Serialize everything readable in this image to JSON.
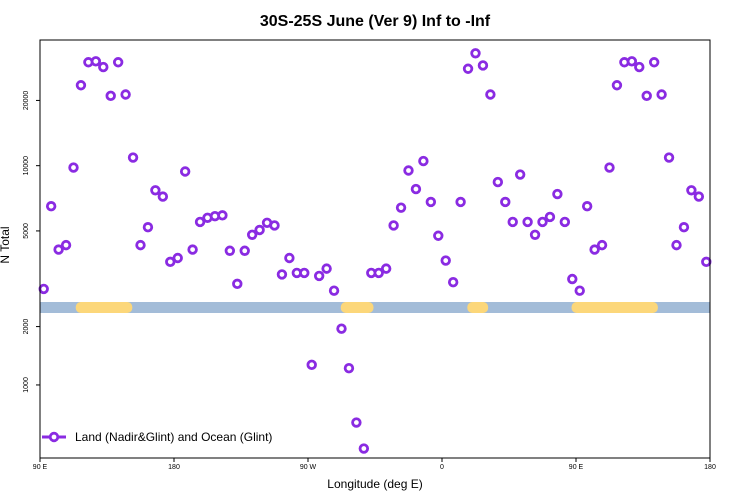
{
  "chart_data": {
    "type": "scatter",
    "title": "30S-25S June (Ver 9)   Inf to -Inf",
    "xlabel": "Longitude (deg E)",
    "ylabel": "N Total",
    "x_ticks": [
      {
        "value": 90,
        "label": "90 E"
      },
      {
        "value": 180,
        "label": "180"
      },
      {
        "value": 270,
        "label": "90 W"
      },
      {
        "value": 360,
        "label": "0"
      },
      {
        "value": 450,
        "label": "90 E"
      },
      {
        "value": 540,
        "label": "180"
      }
    ],
    "xlim": [
      90,
      540
    ],
    "upper_panel": {
      "scale": "log",
      "ylim": [
        2350,
        38000
      ],
      "y_ticks": [
        {
          "value": 5000,
          "label": "5000"
        },
        {
          "value": 10000,
          "label": "10000"
        },
        {
          "value": 20000,
          "label": "20000"
        }
      ]
    },
    "lower_panel": {
      "scale": "log",
      "ylim": [
        420,
        2350
      ],
      "y_ticks": [
        {
          "value": 1000,
          "label": "1000"
        },
        {
          "value": 2000,
          "label": "2000"
        }
      ]
    },
    "surface_bar": {
      "base_color": "#a3bcd8",
      "land_color": "#fcd77a",
      "land_segments": [
        [
          114,
          152
        ],
        [
          292,
          314
        ],
        [
          377,
          391
        ],
        [
          447,
          505
        ]
      ]
    },
    "series": [
      {
        "name": "Land (Nadir&Glint) and Ocean (Glint)",
        "color": "#8a2be2",
        "x": [
          92.5,
          97.5,
          102.5,
          107.5,
          112.5,
          117.5,
          122.5,
          127.5,
          132.5,
          137.5,
          142.5,
          147.5,
          152.5,
          157.5,
          162.5,
          167.5,
          172.5,
          177.5,
          182.5,
          187.5,
          192.5,
          197.5,
          202.5,
          207.5,
          212.5,
          217.5,
          222.5,
          227.5,
          232.5,
          237.5,
          242.5,
          247.5,
          252.5,
          257.5,
          262.5,
          267.5,
          272.5,
          277.5,
          282.5,
          287.5,
          292.5,
          297.5,
          302.5,
          307.5,
          312.5,
          317.5,
          322.5,
          327.5,
          332.5,
          337.5,
          342.5,
          347.5,
          352.5,
          357.5,
          362.5,
          367.5,
          372.5,
          377.5,
          382.5,
          387.5,
          392.5,
          397.5,
          402.5,
          407.5,
          412.5,
          417.5,
          422.5,
          427.5,
          432.5,
          437.5,
          442.5,
          447.5,
          452.5,
          457.5,
          462.5,
          467.5,
          472.5,
          477.5,
          482.5,
          487.5,
          492.5,
          497.5,
          502.5,
          507.5,
          512.5,
          517.5,
          522.5,
          527.5,
          532.5,
          537.5
        ],
        "y": [
          2700,
          6500,
          4100,
          4300,
          9800,
          23500,
          30000,
          30300,
          28500,
          21000,
          30000,
          21300,
          10900,
          4300,
          5200,
          7700,
          7200,
          3600,
          3750,
          9400,
          4100,
          5500,
          5750,
          5850,
          5900,
          4050,
          2850,
          4050,
          4800,
          5050,
          5450,
          5300,
          3150,
          3750,
          3200,
          3200,
          1270,
          3100,
          3350,
          2650,
          1950,
          1220,
          640,
          470,
          3200,
          3200,
          3350,
          5300,
          6400,
          9500,
          7800,
          10500,
          6800,
          4750,
          3650,
          2900,
          6800,
          28000,
          33000,
          29000,
          21300,
          8400,
          6800,
          5500,
          9100,
          5500,
          4800,
          5500,
          5800,
          7400,
          5500,
          3000,
          2650,
          6500,
          4100,
          4300,
          9800,
          23500,
          30000,
          30300,
          28500,
          21000,
          30000,
          21300,
          10900,
          4300,
          5200,
          7700,
          7200,
          3600
        ]
      }
    ],
    "legend": {
      "position": "bottom-left",
      "label": "Land (Nadir&Glint) and Ocean (Glint)"
    }
  }
}
